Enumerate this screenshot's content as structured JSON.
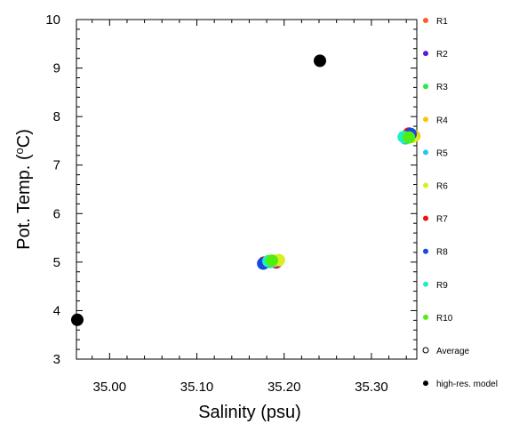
{
  "chart_data": {
    "type": "scatter",
    "xlabel": "Salinity (psu)",
    "ylabel_main": "Pot. Temp. (",
    "ylabel_unit": "o",
    "ylabel_tail": "C)",
    "xlim": [
      34.962,
      35.352
    ],
    "ylim": [
      3,
      10
    ],
    "xticks": [
      35.0,
      35.1,
      35.2,
      35.3
    ],
    "xtick_labels": [
      "35.00",
      "35.10",
      "35.20",
      "35.30"
    ],
    "yticks": [
      3,
      4,
      5,
      6,
      7,
      8,
      9,
      10
    ],
    "ytick_labels": [
      "3",
      "4",
      "5",
      "6",
      "7",
      "8",
      "9",
      "10"
    ],
    "grid": false,
    "legend_position": "right",
    "series": [
      {
        "name": "R1",
        "color": "#ff5a2a",
        "points": [
          [
            35.191,
            4.99
          ],
          [
            35.344,
            7.63
          ]
        ]
      },
      {
        "name": "R2",
        "color": "#5a1adc",
        "points": [
          [
            35.19,
            5.0
          ],
          [
            35.346,
            7.62
          ]
        ]
      },
      {
        "name": "R3",
        "color": "#2ae84a",
        "points": [
          [
            35.184,
            5.01
          ],
          [
            35.341,
            7.57
          ]
        ]
      },
      {
        "name": "R4",
        "color": "#ffc400",
        "points": [
          [
            35.188,
            5.02
          ],
          [
            35.349,
            7.6
          ]
        ]
      },
      {
        "name": "R5",
        "color": "#20c8f0",
        "points": [
          [
            35.183,
            5.0
          ],
          [
            35.339,
            7.55
          ]
        ]
      },
      {
        "name": "R6",
        "color": "#d8f020",
        "points": [
          [
            35.194,
            5.04
          ],
          [
            35.347,
            7.58
          ]
        ]
      },
      {
        "name": "R7",
        "color": "#f01010",
        "points": [
          [
            35.177,
            4.99
          ],
          [
            35.343,
            7.65
          ]
        ]
      },
      {
        "name": "R8",
        "color": "#1848e0",
        "points": [
          [
            35.176,
            4.97
          ],
          [
            35.345,
            7.64
          ]
        ]
      },
      {
        "name": "R9",
        "color": "#20f0c0",
        "points": [
          [
            35.182,
            5.02
          ],
          [
            35.337,
            7.58
          ]
        ]
      },
      {
        "name": "R10",
        "color": "#50ee10",
        "points": [
          [
            35.186,
            5.03
          ],
          [
            35.343,
            7.57
          ]
        ]
      },
      {
        "name": "Average",
        "color": "#000000",
        "marker": "hollow",
        "points": []
      },
      {
        "name": "high-res. model",
        "color": "#000000",
        "points": [
          [
            34.963,
            3.81
          ],
          [
            35.241,
            9.15
          ]
        ]
      }
    ]
  }
}
